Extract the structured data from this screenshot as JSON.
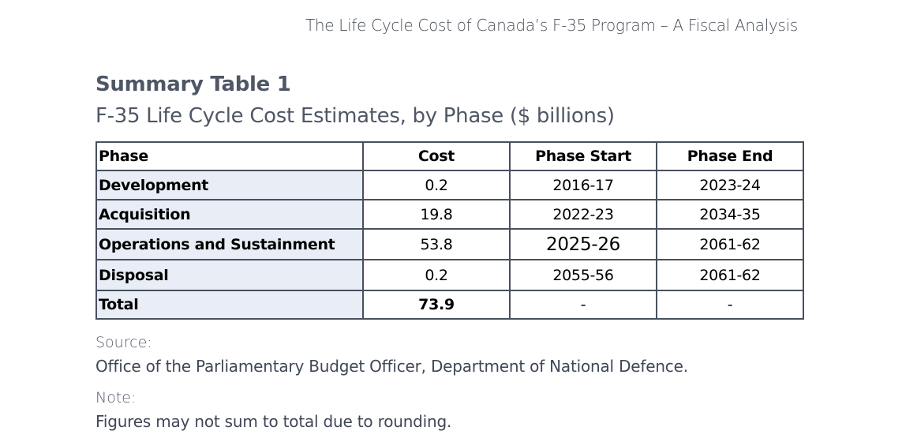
{
  "header": "The Life Cycle Cost of Canada’s F-35 Program – A Fiscal Analysis",
  "summary_title": "Summary Table 1",
  "subtitle": "F-35 Life Cycle Cost Estimates, by Phase ($ billions)",
  "table": {
    "columns": [
      "Phase",
      "Cost",
      "Phase Start",
      "Phase End"
    ],
    "rows": [
      [
        "Development",
        "0.2",
        "2016-17",
        "2023-24"
      ],
      [
        "Acquisition",
        "19.8",
        "2022-23",
        "2034-35"
      ],
      [
        "Operations and Sustainment",
        "53.8",
        "2025-26",
        "2061-62"
      ],
      [
        "Disposal",
        "0.2",
        "2055-56",
        "2061-62"
      ],
      [
        "Total",
        "73.9",
        "-",
        "-"
      ]
    ]
  },
  "source_label": "Source:",
  "source_text": "Office of the Parliamentary Budget Officer, Department of National Defence.",
  "note_label": "Note:",
  "note_text": "Figures may not sum to total due to rounding."
}
